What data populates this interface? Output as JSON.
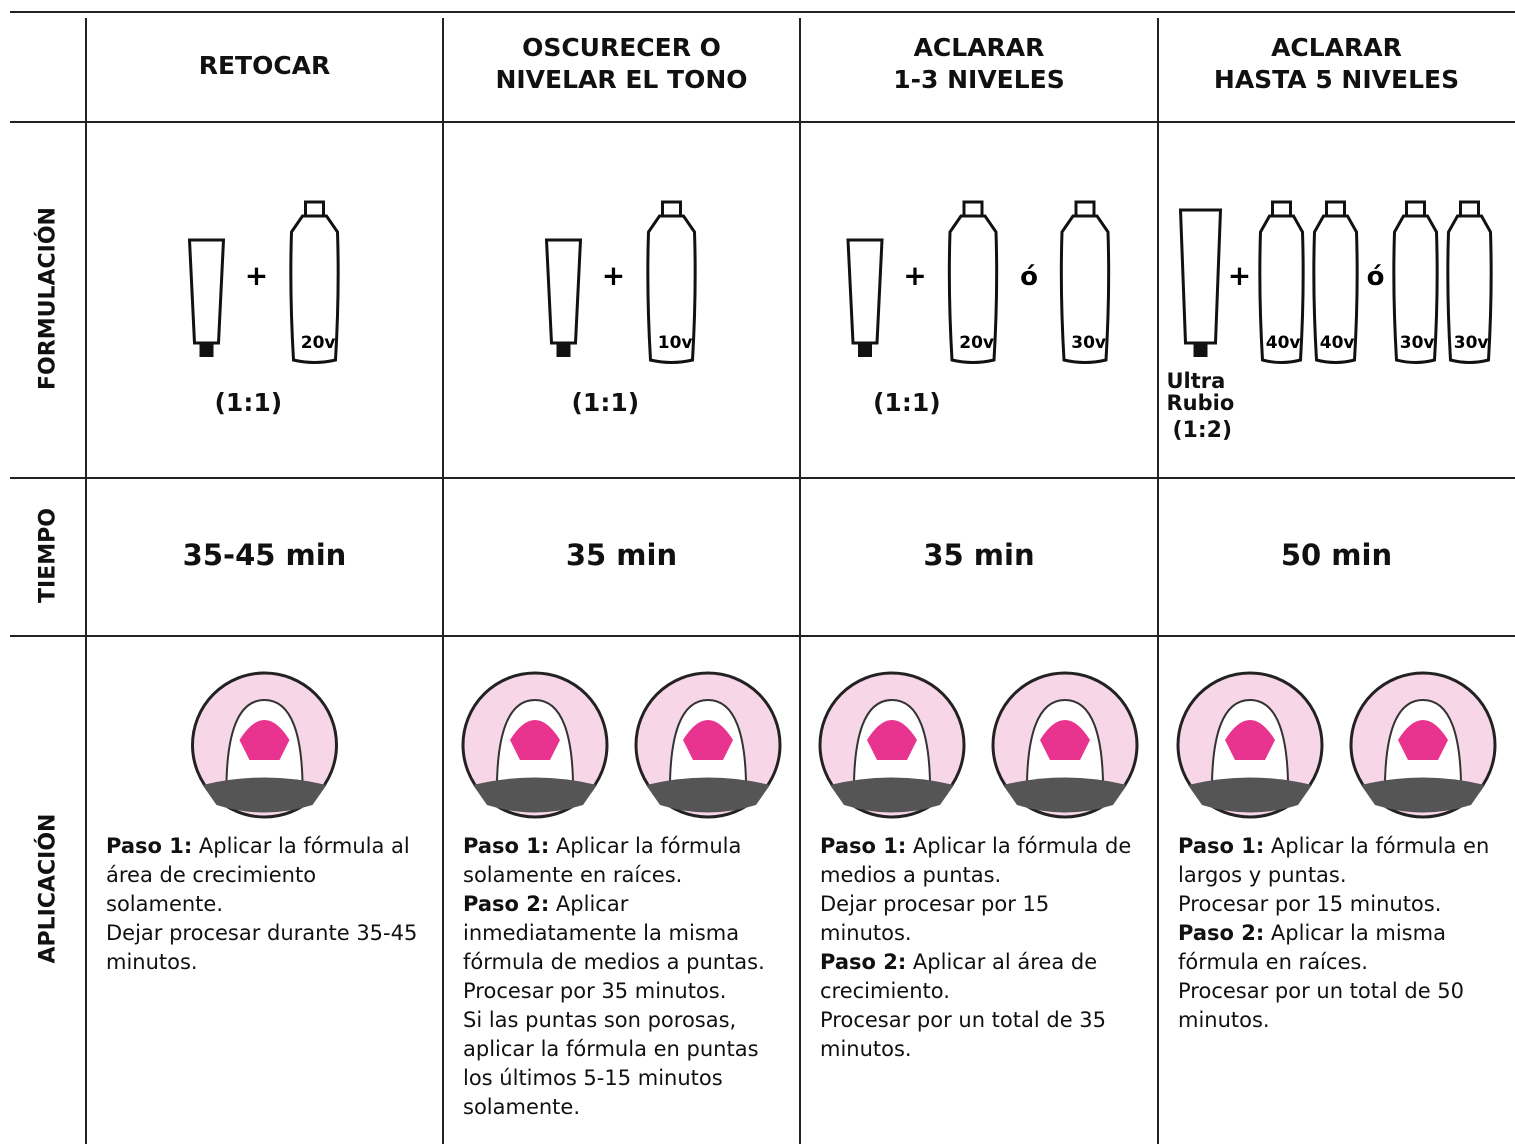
{
  "row_labels": [
    "FORMULACIÓN",
    "TIEMPO",
    "APLICACIÓN"
  ],
  "columns": [
    {
      "title_lines": [
        "RETOCAR"
      ],
      "formula": {
        "bottles": [
          [
            "20v"
          ]
        ],
        "plus": "+",
        "ratio": "(1:1)"
      },
      "time": "35-45 min",
      "steps": [
        {
          "label": "Paso 1:",
          "text": " Aplicar la fórmula al área de crecimiento solamente."
        },
        {
          "text": "Dejar procesar durante 35-45 minutos."
        }
      ]
    },
    {
      "title_lines": [
        "OSCURECER O",
        "NIVELAR EL TONO"
      ],
      "formula": {
        "bottles": [
          [
            "10v"
          ]
        ],
        "plus": "+",
        "ratio": "(1:1)"
      },
      "time": "35 min",
      "steps": [
        {
          "label": "Paso 1:",
          "text": " Aplicar la fórmula solamente en raíces."
        },
        {
          "label": "Paso 2:",
          "text": " Aplicar inmediatamente la misma fórmula de medios a puntas."
        },
        {
          "text": "Procesar por 35 minutos."
        },
        {
          "text": "Si las puntas son porosas, aplicar la fórmula en puntas los últimos 5-15 minutos solamente."
        }
      ]
    },
    {
      "title_lines": [
        "ACLARAR",
        "1-3 NIVELES"
      ],
      "formula": {
        "bottles": [
          [
            "20v"
          ],
          [
            "30v"
          ]
        ],
        "plus": "+",
        "or": "ó",
        "ratio": "(1:1)"
      },
      "time": "35 min",
      "steps": [
        {
          "label": "Paso 1:",
          "text": " Aplicar la fórmula de medios a puntas."
        },
        {
          "text": "Dejar procesar por 15 minutos."
        },
        {
          "label": "Paso 2:",
          "text": " Aplicar al área de crecimiento."
        },
        {
          "text": "Procesar por un total de 35 minutos."
        }
      ]
    },
    {
      "title_lines": [
        "ACLARAR",
        "HASTA 5 NIVELES"
      ],
      "formula": {
        "bottles": [
          [
            "40v",
            "40v"
          ],
          [
            "30v",
            "30v"
          ]
        ],
        "plus": "+",
        "or": "ó",
        "tube_label": [
          "Ultra",
          "Rubio"
        ],
        "ratio": "(1:2)"
      },
      "time": "50 min",
      "steps": [
        {
          "label": "Paso 1:",
          "text": " Aplicar la fórmula en largos y puntas."
        },
        {
          "text": "Procesar por 15 minutos."
        },
        {
          "label": "Paso 2:",
          "text": " Aplicar la misma fórmula en raíces."
        },
        {
          "text": "Procesar por un total de 50 minutos."
        }
      ]
    }
  ]
}
